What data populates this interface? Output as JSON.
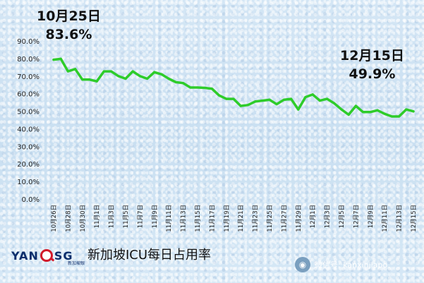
{
  "callouts": {
    "start": {
      "date": "10月25日",
      "value": "83.6%"
    },
    "end": {
      "date": "12月15日",
      "value": "49.9%"
    }
  },
  "footer": {
    "logo_left": "YAN",
    "logo_right": "SG",
    "logo_sub": "新加坡眼",
    "caption": "新加坡ICU每日占用率",
    "wechat_label": "微信号: kanxinjiapo",
    "wechat_icon": "wechat-icon"
  },
  "colors": {
    "line": "#2ecc2a",
    "text": "#111111",
    "background": "#cfe3f3"
  },
  "chart_data": {
    "type": "line",
    "title": "",
    "xlabel": "",
    "ylabel": "",
    "y_ticks": [
      "0.0%",
      "10.0%",
      "20.0%",
      "30.0%",
      "40.0%",
      "50.0%",
      "60.0%",
      "70.0%",
      "80.0%",
      "90.0%"
    ],
    "ylim": [
      0,
      90
    ],
    "x_tick_labels": [
      "10月26日",
      "10月28日",
      "10月30日",
      "11月1日",
      "11月3日",
      "11月5日",
      "11月7日",
      "11月9日",
      "11月11日",
      "11月13日",
      "11月15日",
      "11月17日",
      "11月19日",
      "11月21日",
      "11月23日",
      "11月25日",
      "11月27日",
      "11月29日",
      "12月1日",
      "12月3日",
      "12月5日",
      "12月7日",
      "12月9日",
      "12月11日",
      "12月13日",
      "12月15日"
    ],
    "grid": false,
    "legend": "none",
    "series": [
      {
        "values": [
          79.3,
          79.8,
          72.7,
          74.0,
          68.0,
          68.0,
          67.0,
          72.7,
          72.7,
          70.0,
          68.5,
          72.7,
          70.0,
          68.5,
          72.2,
          71.0,
          68.5,
          66.5,
          66.0,
          63.5,
          63.5,
          63.3,
          62.8,
          59.0,
          57.0,
          57.0,
          53.0,
          53.5,
          55.5,
          56.0,
          56.5,
          54.0,
          56.5,
          57.0,
          51.0,
          58.0,
          59.5,
          56.0,
          57.0,
          54.5,
          51.0,
          48.0,
          53.0,
          49.5,
          49.5,
          50.5,
          48.5,
          47.0,
          47.0,
          51.0,
          49.9
        ]
      }
    ]
  }
}
